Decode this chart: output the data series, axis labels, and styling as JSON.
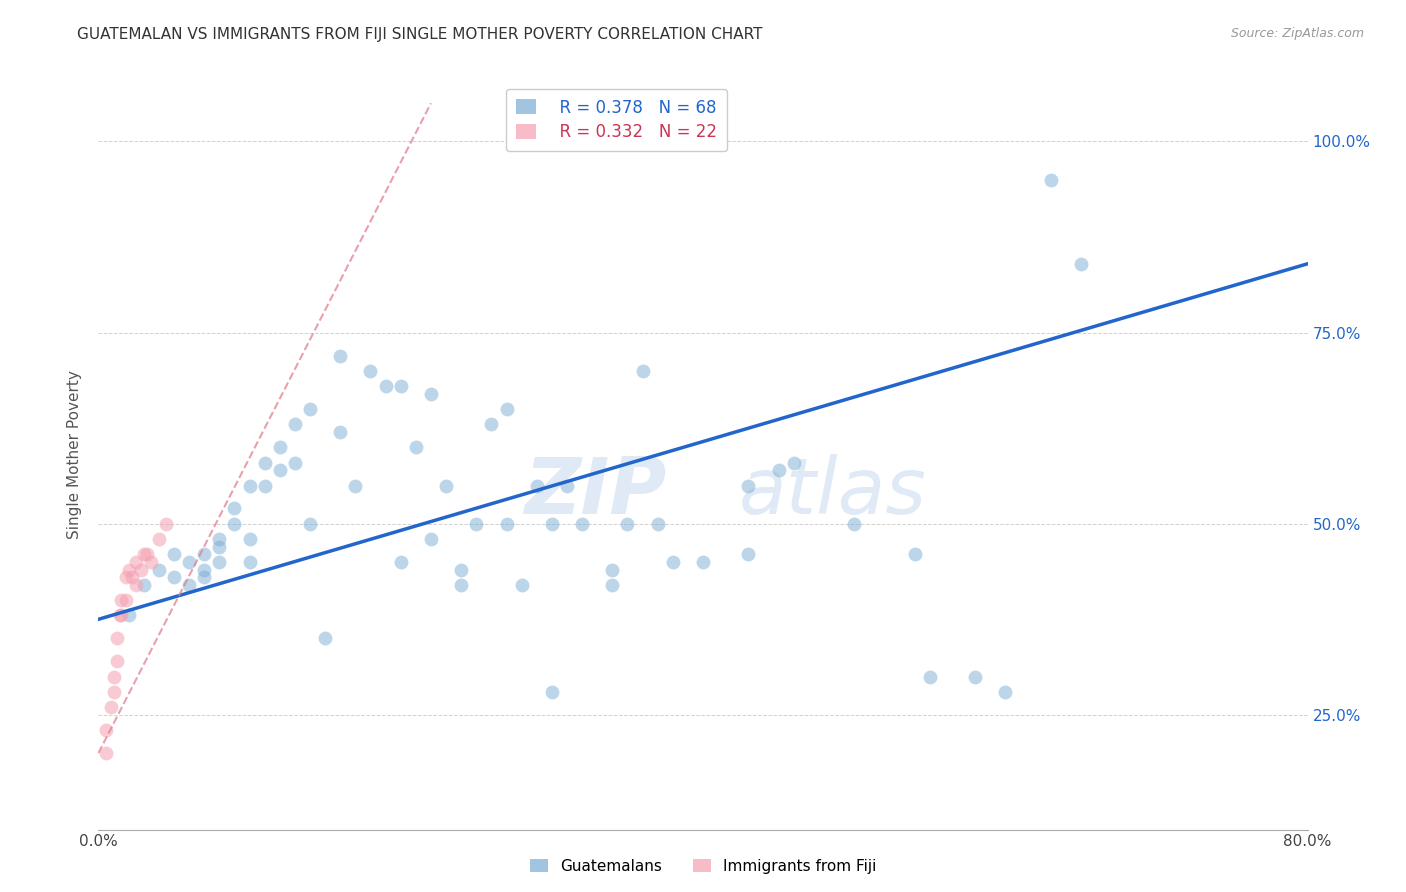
{
  "title": "GUATEMALAN VS IMMIGRANTS FROM FIJI SINGLE MOTHER POVERTY CORRELATION CHART",
  "source": "Source: ZipAtlas.com",
  "ylabel": "Single Mother Poverty",
  "legend_blue_r": "R = 0.378",
  "legend_blue_n": "N = 68",
  "legend_pink_r": "R = 0.332",
  "legend_pink_n": "N = 22",
  "legend_label_blue": "Guatemalans",
  "legend_label_pink": "Immigrants from Fiji",
  "blue_color": "#7aadd4",
  "pink_color": "#f4a0b0",
  "trendline_blue_color": "#2266cc",
  "trendline_pink_color": "#e08090",
  "xlim": [
    0.0,
    0.8
  ],
  "ylim": [
    0.1,
    1.08
  ],
  "ytick_vals": [
    0.25,
    0.5,
    0.75,
    1.0
  ],
  "ytick_labels": [
    "25.0%",
    "50.0%",
    "75.0%",
    "100.0%"
  ],
  "blue_scatter_x": [
    0.02,
    0.03,
    0.04,
    0.05,
    0.05,
    0.06,
    0.06,
    0.07,
    0.07,
    0.07,
    0.08,
    0.08,
    0.08,
    0.09,
    0.09,
    0.1,
    0.1,
    0.1,
    0.11,
    0.11,
    0.12,
    0.12,
    0.13,
    0.13,
    0.14,
    0.14,
    0.15,
    0.16,
    0.16,
    0.17,
    0.18,
    0.19,
    0.2,
    0.2,
    0.21,
    0.22,
    0.22,
    0.23,
    0.24,
    0.24,
    0.25,
    0.26,
    0.27,
    0.27,
    0.28,
    0.29,
    0.3,
    0.3,
    0.31,
    0.32,
    0.34,
    0.34,
    0.35,
    0.36,
    0.37,
    0.38,
    0.4,
    0.43,
    0.43,
    0.45,
    0.46,
    0.5,
    0.54,
    0.55,
    0.58,
    0.6,
    0.63,
    0.65
  ],
  "blue_scatter_y": [
    0.38,
    0.42,
    0.44,
    0.43,
    0.46,
    0.45,
    0.42,
    0.46,
    0.44,
    0.43,
    0.47,
    0.48,
    0.45,
    0.5,
    0.52,
    0.55,
    0.48,
    0.45,
    0.58,
    0.55,
    0.6,
    0.57,
    0.63,
    0.58,
    0.65,
    0.5,
    0.35,
    0.62,
    0.72,
    0.55,
    0.7,
    0.68,
    0.68,
    0.45,
    0.6,
    0.67,
    0.48,
    0.55,
    0.44,
    0.42,
    0.5,
    0.63,
    0.65,
    0.5,
    0.42,
    0.55,
    0.5,
    0.28,
    0.55,
    0.5,
    0.44,
    0.42,
    0.5,
    0.7,
    0.5,
    0.45,
    0.45,
    0.46,
    0.55,
    0.57,
    0.58,
    0.5,
    0.46,
    0.3,
    0.3,
    0.28,
    0.95,
    0.84
  ],
  "pink_scatter_x": [
    0.005,
    0.005,
    0.008,
    0.01,
    0.01,
    0.012,
    0.012,
    0.014,
    0.015,
    0.015,
    0.018,
    0.018,
    0.02,
    0.022,
    0.025,
    0.025,
    0.028,
    0.03,
    0.032,
    0.035,
    0.04,
    0.045
  ],
  "pink_scatter_y": [
    0.2,
    0.23,
    0.26,
    0.28,
    0.3,
    0.32,
    0.35,
    0.38,
    0.38,
    0.4,
    0.4,
    0.43,
    0.44,
    0.43,
    0.42,
    0.45,
    0.44,
    0.46,
    0.46,
    0.45,
    0.48,
    0.5
  ],
  "blue_trendline_x": [
    0.0,
    0.8
  ],
  "blue_trendline_y": [
    0.375,
    0.84
  ],
  "pink_trendline_x": [
    0.0,
    0.22
  ],
  "pink_trendline_y": [
    0.2,
    1.05
  ]
}
